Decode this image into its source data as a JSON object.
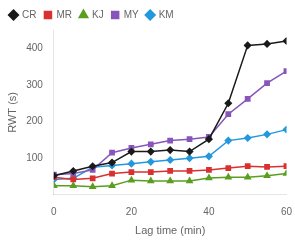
{
  "chart_data": {
    "type": "line",
    "xlabel": "Lag time (min)",
    "ylabel": "RWT (s)",
    "xlim": [
      0,
      60
    ],
    "ylim": [
      0,
      450
    ],
    "xticks": [
      0,
      20,
      40,
      60
    ],
    "yticks": [
      100,
      200,
      300,
      400
    ],
    "grid": false,
    "legend": "upper left",
    "x": [
      0,
      5,
      10,
      15,
      20,
      25,
      30,
      35,
      40,
      45,
      50,
      55,
      60
    ],
    "series": [
      {
        "name": "CR",
        "color": "#1a1a1a",
        "marker": "diamond",
        "values": [
          52,
          65,
          78,
          88,
          118,
          118,
          122,
          118,
          152,
          250,
          408,
          412,
          420
        ]
      },
      {
        "name": "MR",
        "color": "#d93030",
        "marker": "square",
        "values": [
          48,
          42,
          45,
          58,
          62,
          62,
          65,
          65,
          68,
          73,
          78,
          76,
          78
        ]
      },
      {
        "name": "KJ",
        "color": "#5a9e20",
        "marker": "triangle",
        "values": [
          25,
          25,
          22,
          25,
          40,
          38,
          38,
          38,
          46,
          48,
          48,
          52,
          58
        ]
      },
      {
        "name": "MY",
        "color": "#8855bb",
        "marker": "square",
        "values": [
          55,
          58,
          68,
          115,
          128,
          138,
          148,
          152,
          158,
          220,
          262,
          305,
          338
        ]
      },
      {
        "name": "KM",
        "color": "#2299dd",
        "marker": "diamond",
        "values": [
          42,
          45,
          75,
          80,
          85,
          90,
          95,
          100,
          105,
          148,
          155,
          165,
          178
        ]
      }
    ]
  }
}
